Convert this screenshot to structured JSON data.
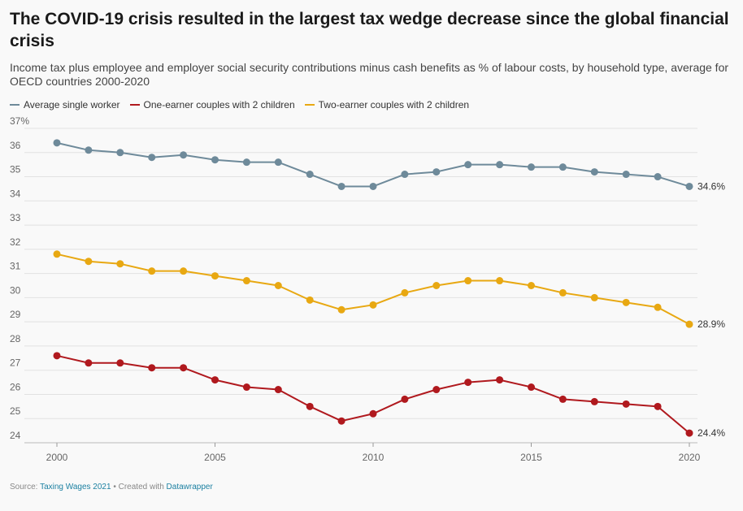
{
  "title": "The COVID-19 crisis resulted in the largest tax wedge decrease since the global financial crisis",
  "subtitle": "Income tax plus employee and employer social security contributions minus cash benefits as % of labour costs, by household type, average for OECD countries 2000-2020",
  "footer": {
    "source_prefix": "Source:",
    "source_link": "Taxing Wages 2021",
    "separator": "•",
    "created_prefix": "Created with",
    "created_link": "Datawrapper"
  },
  "chart_data": {
    "type": "line",
    "title": "The COVID-19 crisis resulted in the largest tax wedge decrease since the global financial crisis",
    "xlabel": "",
    "ylabel": "",
    "x": [
      2000,
      2001,
      2002,
      2003,
      2004,
      2005,
      2006,
      2007,
      2008,
      2009,
      2010,
      2011,
      2012,
      2013,
      2014,
      2015,
      2016,
      2017,
      2018,
      2019,
      2020
    ],
    "xlim": [
      2000,
      2020
    ],
    "ylim": [
      24,
      37
    ],
    "x_ticks": [
      2000,
      2005,
      2010,
      2015,
      2020
    ],
    "y_ticks": [
      "24",
      "25",
      "26",
      "27",
      "28",
      "29",
      "30",
      "31",
      "32",
      "33",
      "34",
      "35",
      "36",
      "37%"
    ],
    "legend_position": "top-left",
    "series": [
      {
        "name": "Average single worker",
        "color": "#6e8a9a",
        "values": [
          36.4,
          36.1,
          36.0,
          35.8,
          35.9,
          35.7,
          35.6,
          35.6,
          35.1,
          34.6,
          34.6,
          35.1,
          35.2,
          35.5,
          35.5,
          35.4,
          35.4,
          35.2,
          35.1,
          35.0,
          34.6
        ],
        "end_label": "34.6%"
      },
      {
        "name": "One-earner couples with 2 children",
        "color": "#b0191e",
        "values": [
          27.6,
          27.3,
          27.3,
          27.1,
          27.1,
          26.6,
          26.3,
          26.2,
          25.5,
          24.9,
          25.2,
          25.8,
          26.2,
          26.5,
          26.6,
          26.3,
          25.8,
          25.7,
          25.6,
          25.5,
          24.4
        ],
        "end_label": "24.4%"
      },
      {
        "name": "Two-earner couples with 2 children",
        "color": "#e8a812",
        "values": [
          31.8,
          31.5,
          31.4,
          31.1,
          31.1,
          30.9,
          30.7,
          30.5,
          29.9,
          29.5,
          29.7,
          30.2,
          30.5,
          30.7,
          30.7,
          30.5,
          30.2,
          30.0,
          29.8,
          29.6,
          28.9
        ],
        "end_label": "28.9%"
      }
    ]
  }
}
